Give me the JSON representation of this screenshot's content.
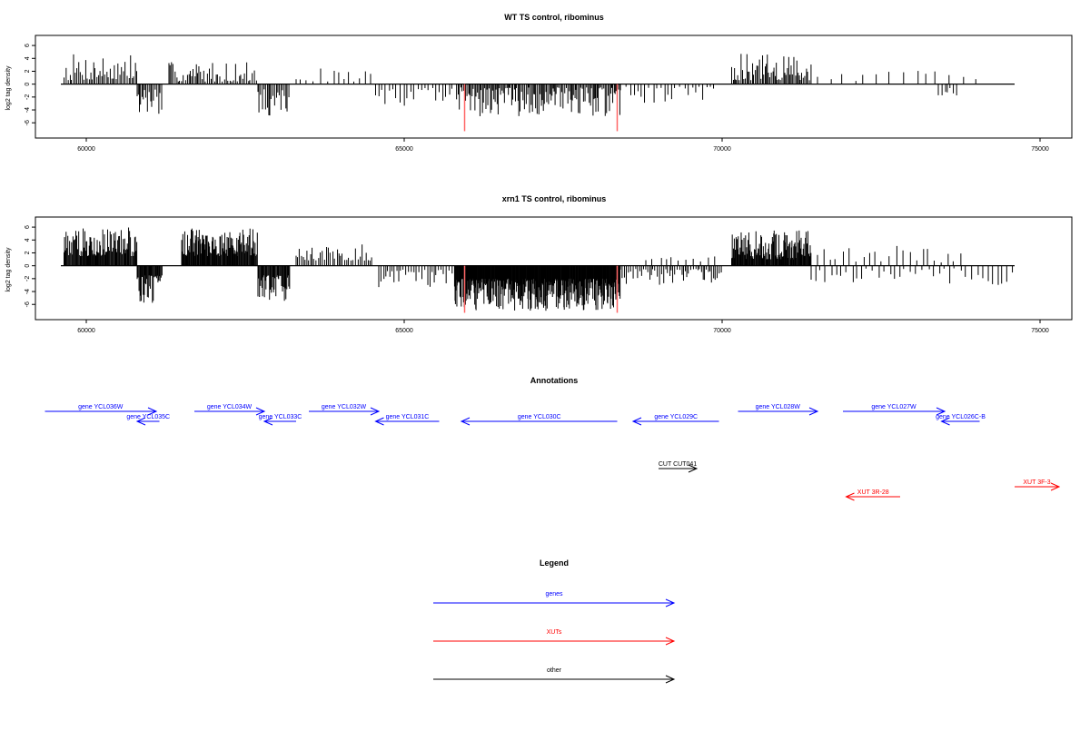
{
  "chart_data": [
    {
      "type": "bar",
      "title": "WT TS control, ribominus",
      "ylabel": "log2 tag density",
      "xlabel": "",
      "xlim": [
        59200,
        75500
      ],
      "ylim": [
        -7.8,
        7.0
      ],
      "xticks": [
        60000,
        65000,
        70000,
        75000
      ],
      "yticks": [
        -6,
        -4,
        -2,
        0,
        2,
        4,
        6
      ],
      "baseline": {
        "x0": 59600,
        "x1": 74600
      },
      "markers": [
        {
          "x": 65950,
          "y": -7.3,
          "color": "#ff6666"
        },
        {
          "x": 68350,
          "y": -7.3,
          "color": "#ff6666"
        }
      ],
      "segments": [
        {
          "x0": 59650,
          "x1": 60800,
          "sign": 1,
          "min": 0.6,
          "max": 4.8,
          "step": 25
        },
        {
          "x0": 60800,
          "x1": 61200,
          "sign": -1,
          "min": 0.8,
          "max": 5.2,
          "step": 22
        },
        {
          "x0": 61300,
          "x1": 62700,
          "sign": 1,
          "min": 0.4,
          "max": 3.5,
          "step": 28
        },
        {
          "x0": 62700,
          "x1": 63200,
          "sign": -1,
          "min": 0.8,
          "max": 5.0,
          "step": 24
        },
        {
          "x0": 63300,
          "x1": 64500,
          "sign": 1,
          "min": 0.4,
          "max": 2.5,
          "step": 95
        },
        {
          "x0": 64550,
          "x1": 65850,
          "sign": -1,
          "min": 0.6,
          "max": 3.5,
          "step": 55
        },
        {
          "x0": 65850,
          "x1": 68400,
          "sign": -1,
          "min": 0.5,
          "max": 5.0,
          "step": 20
        },
        {
          "x0": 68400,
          "x1": 69900,
          "sign": -1,
          "min": 0.4,
          "max": 3.0,
          "step": 65
        },
        {
          "x0": 70150,
          "x1": 71400,
          "sign": 1,
          "min": 0.6,
          "max": 4.7,
          "step": 22
        },
        {
          "x0": 71500,
          "x1": 74000,
          "sign": 1,
          "min": 0.5,
          "max": 2.2,
          "step": 170
        },
        {
          "x0": 73400,
          "x1": 73700,
          "sign": -1,
          "min": 0.6,
          "max": 2.2,
          "step": 45
        }
      ]
    },
    {
      "type": "bar",
      "title": "xrn1 TS control, ribominus",
      "ylabel": "log2 tag density",
      "xlabel": "",
      "xlim": [
        59200,
        75500
      ],
      "ylim": [
        -7.8,
        7.0
      ],
      "xticks": [
        60000,
        65000,
        70000,
        75000
      ],
      "yticks": [
        -6,
        -4,
        -2,
        0,
        2,
        4,
        6
      ],
      "baseline": {
        "x0": 59600,
        "x1": 74600
      },
      "markers": [
        {
          "x": 65950,
          "y": -7.3,
          "color": "#ff6666"
        },
        {
          "x": 68350,
          "y": -7.3,
          "color": "#ff6666"
        }
      ],
      "segments": [
        {
          "x0": 59650,
          "x1": 60800,
          "sign": 1,
          "min": 1.5,
          "max": 6.0,
          "step": 12
        },
        {
          "x0": 60800,
          "x1": 61200,
          "sign": -1,
          "min": 1.5,
          "max": 5.8,
          "step": 12
        },
        {
          "x0": 61500,
          "x1": 62700,
          "sign": 1,
          "min": 1.5,
          "max": 5.8,
          "step": 11
        },
        {
          "x0": 62700,
          "x1": 63200,
          "sign": -1,
          "min": 1.5,
          "max": 5.5,
          "step": 12
        },
        {
          "x0": 63300,
          "x1": 64500,
          "sign": 1,
          "min": 0.8,
          "max": 3.5,
          "step": 35
        },
        {
          "x0": 64600,
          "x1": 65800,
          "sign": -1,
          "min": 0.6,
          "max": 3.5,
          "step": 35
        },
        {
          "x0": 65800,
          "x1": 68400,
          "sign": -1,
          "min": 2.0,
          "max": 7.0,
          "step": 8
        },
        {
          "x0": 68400,
          "x1": 70000,
          "sign": -1,
          "min": 0.5,
          "max": 3.0,
          "step": 30
        },
        {
          "x0": 68800,
          "x1": 69900,
          "sign": 1,
          "min": 0.5,
          "max": 1.5,
          "step": 110
        },
        {
          "x0": 70150,
          "x1": 71400,
          "sign": 1,
          "min": 1.0,
          "max": 5.5,
          "step": 11
        },
        {
          "x0": 71500,
          "x1": 73800,
          "sign": 1,
          "min": 0.5,
          "max": 3.5,
          "step": 95
        },
        {
          "x0": 71400,
          "x1": 74600,
          "sign": -1,
          "min": 0.4,
          "max": 3.0,
          "step": 85
        }
      ]
    }
  ],
  "annotations": {
    "title": "Annotations",
    "features": [
      {
        "label": "gene YCL036W",
        "x0": 59350,
        "x1": 61100,
        "row": 0,
        "dir": "right",
        "color": "#0000ff"
      },
      {
        "label": "gene YCL035C",
        "x0": 60800,
        "x1": 61150,
        "row": 1,
        "dir": "left",
        "color": "#0000ff"
      },
      {
        "label": "gene YCL034W",
        "x0": 61700,
        "x1": 62800,
        "row": 0,
        "dir": "right",
        "color": "#0000ff"
      },
      {
        "label": "gene YCL033C",
        "x0": 62800,
        "x1": 63300,
        "row": 1,
        "dir": "left",
        "color": "#0000ff"
      },
      {
        "label": "gene YCL032W",
        "x0": 63500,
        "x1": 64600,
        "row": 0,
        "dir": "right",
        "color": "#0000ff"
      },
      {
        "label": "gene YCL031C",
        "x0": 64550,
        "x1": 65550,
        "row": 1,
        "dir": "left",
        "color": "#0000ff"
      },
      {
        "label": "gene YCL030C",
        "x0": 65900,
        "x1": 68350,
        "row": 1,
        "dir": "left",
        "color": "#0000ff"
      },
      {
        "label": "gene YCL029C",
        "x0": 68600,
        "x1": 69950,
        "row": 1,
        "dir": "left",
        "color": "#0000ff"
      },
      {
        "label": "gene YCL028W",
        "x0": 70250,
        "x1": 71500,
        "row": 0,
        "dir": "right",
        "color": "#0000ff"
      },
      {
        "label": "gene YCL027W",
        "x0": 71900,
        "x1": 73500,
        "row": 0,
        "dir": "right",
        "color": "#0000ff"
      },
      {
        "label": "gene YCL026C-B",
        "x0": 73450,
        "x1": 74050,
        "row": 1,
        "dir": "left",
        "color": "#0000ff"
      },
      {
        "label": "CUT CUT041",
        "x0": 69000,
        "x1": 69600,
        "row": 2,
        "dir": "right",
        "color": "#000000"
      },
      {
        "label": "XUT 3R-28",
        "x0": 71950,
        "x1": 72800,
        "row": 3,
        "dir": "left",
        "color": "#ff0000"
      },
      {
        "label": "XUT 3F-3",
        "x0": 74600,
        "x1": 75300,
        "row": 4,
        "dir": "right",
        "color": "#ff0000"
      }
    ]
  },
  "legend": {
    "title": "Legend",
    "entries": [
      {
        "label": "genes",
        "color": "#0000ff"
      },
      {
        "label": "XUTs",
        "color": "#ff0000"
      },
      {
        "label": "other",
        "color": "#000000"
      }
    ]
  }
}
